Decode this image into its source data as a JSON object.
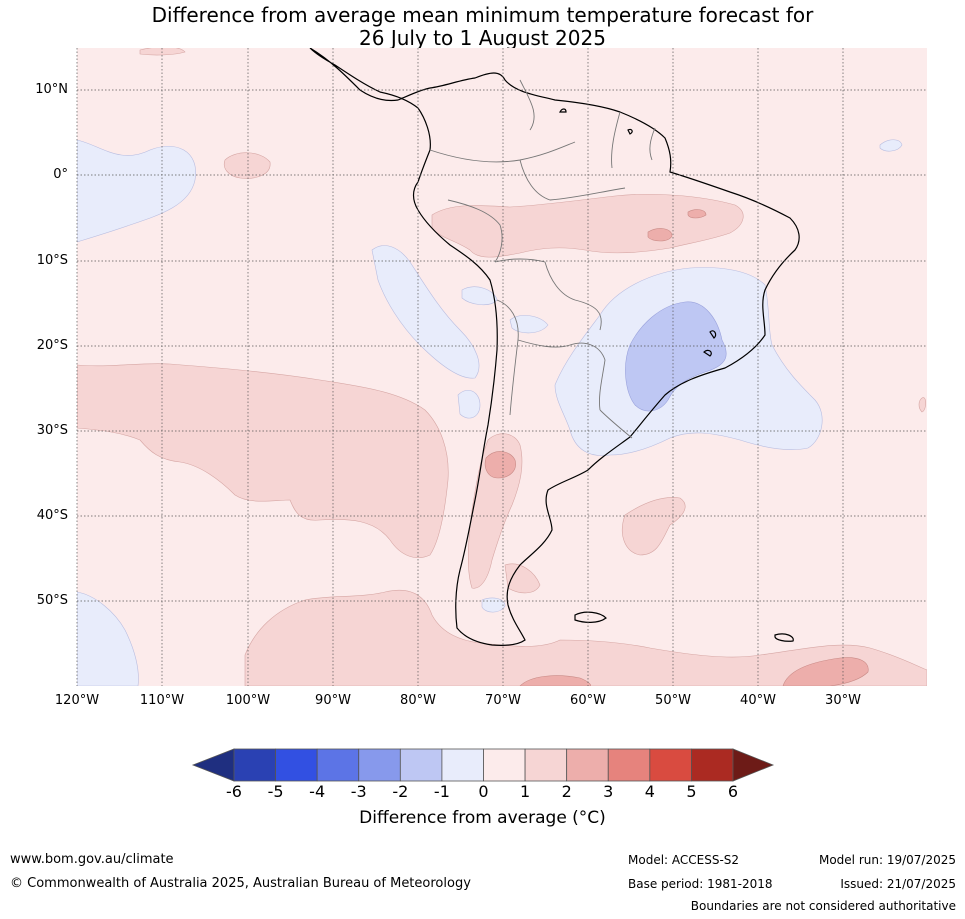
{
  "title": {
    "line1": "Difference from average mean minimum temperature forecast for",
    "line2": "26 July to 1 August 2025"
  },
  "map_labels": {
    "lat": [
      "10°N",
      "0°",
      "10°S",
      "20°S",
      "30°S",
      "40°S",
      "50°S"
    ],
    "lon": [
      "120°W",
      "110°W",
      "100°W",
      "90°W",
      "80°W",
      "70°W",
      "60°W",
      "50°W",
      "40°W",
      "30°W"
    ]
  },
  "colorbar": {
    "ticks": [
      "-6",
      "-5",
      "-4",
      "-3",
      "-2",
      "-1",
      "0",
      "1",
      "2",
      "3",
      "4",
      "5",
      "6"
    ],
    "colors": [
      "#1f2f80",
      "#2a41b3",
      "#3250e2",
      "#5c74e6",
      "#8799ec",
      "#bec7f3",
      "#e8ecfb",
      "#fcebeb",
      "#f6d5d4",
      "#edaeab",
      "#e6837d",
      "#d94b40",
      "#ab2a22",
      "#6d1b17"
    ],
    "label": "Difference from average (°C)"
  },
  "footer": {
    "website": "www.bom.gov.au/climate",
    "copyright": "© Commonwealth of Australia 2025, Australian Bureau of Meteorology",
    "model": "Model: ACCESS-S2",
    "base_period": "Base period: 1981-2018",
    "model_run": "Model run: 19/07/2025",
    "issued": "Issued: 21/07/2025",
    "disclaimer": "Boundaries are not considered authoritative"
  }
}
